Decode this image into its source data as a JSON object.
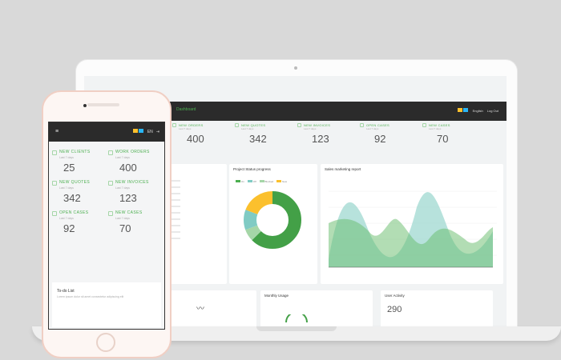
{
  "colors": {
    "accent": "#4caf50",
    "topbar": "#2b2b2b",
    "teal": "#80cbc4",
    "yellow": "#fbc02d",
    "light_green": "#a5d6a7",
    "flag_yellow": "#fbc02d",
    "flag_blue": "#29b6f6"
  },
  "laptop": {
    "brand": "Dashboard",
    "topbar": {
      "lang": "English",
      "logout": "Log Out"
    },
    "stats": [
      {
        "label": "NEW ORDERS",
        "sub": "Last 7 days",
        "value": "400",
        "icon": "cart-icon"
      },
      {
        "label": "NEW QUOTES",
        "sub": "Last 7 days",
        "value": "342",
        "icon": "quote-icon"
      },
      {
        "label": "NEW INVOICES",
        "sub": "Last 7 days",
        "value": "123",
        "icon": "invoice-icon"
      },
      {
        "label": "OPEN CASES",
        "sub": "Last 7 days",
        "value": "92",
        "icon": "case-icon"
      },
      {
        "label": "NEW CASES",
        "sub": "Last 7 days",
        "value": "70",
        "icon": "case-icon"
      }
    ],
    "project_progress": {
      "title": "Project Status progress",
      "legend": [
        "On",
        "Off",
        "Blocked",
        "New"
      ]
    },
    "sales_report": {
      "title": "Sales marketing report"
    },
    "bottom": {
      "monthly_usage": "Monthly Usage",
      "user_activity": "User Activity",
      "user_activity_value": "290"
    }
  },
  "phone": {
    "topbar": {
      "lang": "EN"
    },
    "cards": [
      {
        "label": "NEW CLIENTS",
        "sub": "Last 7 days",
        "value": "25",
        "icon": "user-icon"
      },
      {
        "label": "WORK ORDERS",
        "sub": "Last 7 days",
        "value": "400",
        "icon": "clipboard-icon"
      },
      {
        "label": "NEW QUOTES",
        "sub": "Last 7 days",
        "value": "342",
        "icon": "quote-icon"
      },
      {
        "label": "NEW INVOICES",
        "sub": "Last 7 days",
        "value": "123",
        "icon": "invoice-icon"
      },
      {
        "label": "OPEN CASES",
        "sub": "Last 7 days",
        "value": "92",
        "icon": "case-icon"
      },
      {
        "label": "NEW CASES",
        "sub": "Last 7 days",
        "value": "70",
        "icon": "case-icon"
      }
    ],
    "todo": {
      "title": "To-do List",
      "sub": "Lorem ipsum dolor sit amet consectetur adipiscing elit"
    }
  }
}
